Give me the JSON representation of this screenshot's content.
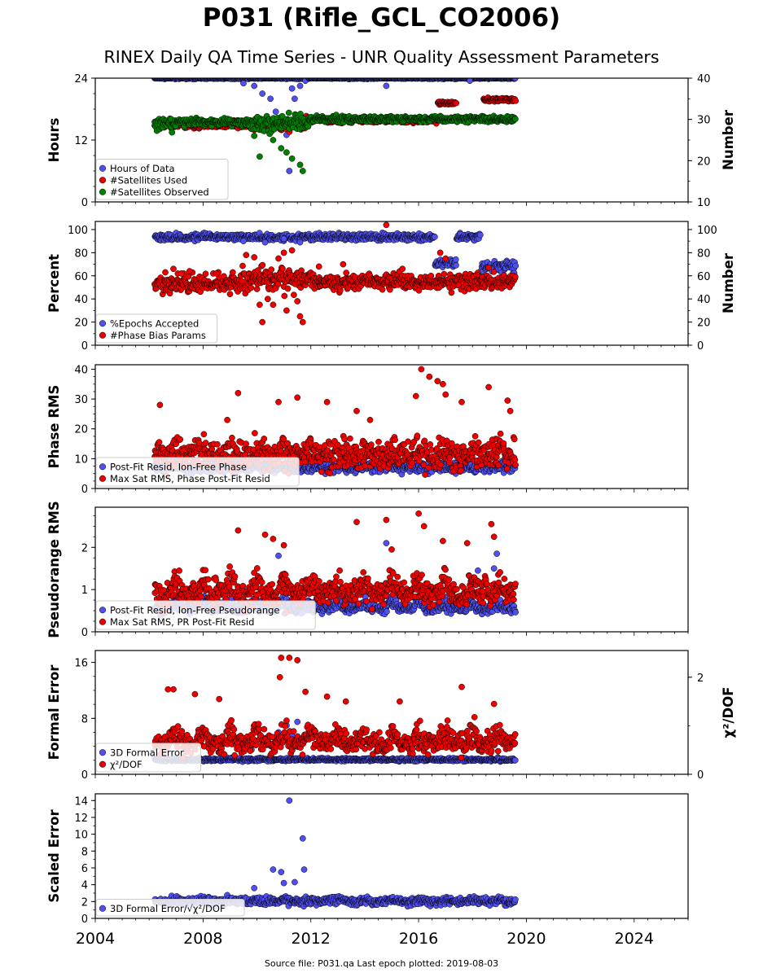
{
  "title": "P031 (Rifle_GCL_CO2006)",
  "subtitle": "RINEX Daily QA Time Series - UNR Quality Assessment Parameters",
  "footer": "Source file: P031.qa Last epoch plotted: 2019-08-03",
  "colors": {
    "blue": "#5050f0",
    "red": "#ee0000",
    "green": "#008000",
    "edge": "#000000"
  },
  "chart_data": [
    {
      "type": "scatter",
      "ylabel": "Hours",
      "y2label": "Number",
      "ylim": [
        0,
        24
      ],
      "yticks": [
        0,
        12,
        24
      ],
      "y2lim": [
        10,
        40
      ],
      "y2ticks": [
        10,
        20,
        30,
        40
      ],
      "legend": "lower-left",
      "series": [
        {
          "name": "Hours of Data",
          "color": "blue",
          "axis": "left",
          "segments": [
            {
              "x": [
                2006.2,
                2009.3
              ],
              "y": 24,
              "jitter": 0.1
            },
            {
              "x": [
                2009.3,
                2011.9
              ],
              "y": 24,
              "jitter": 0.1,
              "outliers": [
                [
                  2009.5,
                  23
                ],
                [
                  2009.9,
                  22.5
                ],
                [
                  2010.2,
                  21
                ],
                [
                  2010.5,
                  20
                ],
                [
                  2010.7,
                  17.5
                ],
                [
                  2010.9,
                  16
                ],
                [
                  2011.0,
                  15
                ],
                [
                  2011.1,
                  13
                ],
                [
                  2011.2,
                  6
                ],
                [
                  2011.3,
                  22
                ],
                [
                  2011.4,
                  20
                ],
                [
                  2011.6,
                  22.5
                ],
                [
                  2011.8,
                  23.5
                ]
              ]
            },
            {
              "x": [
                2011.9,
                2019.6
              ],
              "y": 24,
              "jitter": 0.1,
              "outliers": [
                [
                  2014.8,
                  22.5
                ],
                [
                  2017.9,
                  23.5
                ]
              ]
            }
          ]
        },
        {
          "name": "#Satellites Used",
          "color": "red",
          "axis": "right",
          "segments": [
            {
              "x": [
                2006.2,
                2009.8
              ],
              "y": 28.6,
              "jitter": 0.5
            },
            {
              "x": [
                2009.8,
                2011.9
              ],
              "y": 28.8,
              "jitter": 1.0
            },
            {
              "x": [
                2011.9,
                2016.7
              ],
              "y": 29.8,
              "jitter": 0.4
            },
            {
              "x": [
                2016.7,
                2017.4
              ],
              "y": 34.0,
              "jitter": 0.3
            },
            {
              "x": [
                2017.4,
                2018.4
              ],
              "y": 30.2,
              "jitter": 0.3
            },
            {
              "x": [
                2018.4,
                2019.6
              ],
              "y": 34.8,
              "jitter": 0.4
            }
          ]
        },
        {
          "name": "#Satellites Observed",
          "color": "green",
          "axis": "right",
          "segments": [
            {
              "x": [
                2006.2,
                2007.0
              ],
              "y": 28.7,
              "jitter": 0.9
            },
            {
              "x": [
                2007.0,
                2009.8
              ],
              "y": 29.4,
              "jitter": 0.6
            },
            {
              "x": [
                2009.8,
                2011.9
              ],
              "y": 29.0,
              "jitter": 1.3,
              "outliers": [
                [
                  2009.9,
                  26
                ],
                [
                  2010.1,
                  21
                ],
                [
                  2010.6,
                  25
                ],
                [
                  2010.9,
                  23
                ],
                [
                  2011.1,
                  22
                ],
                [
                  2011.3,
                  20.5
                ],
                [
                  2011.6,
                  19
                ],
                [
                  2011.7,
                  17.5
                ]
              ]
            },
            {
              "x": [
                2011.9,
                2019.6
              ],
              "y": 30.1,
              "jitter": 0.5
            }
          ]
        }
      ]
    },
    {
      "type": "scatter",
      "ylabel": "Percent",
      "y2label": "Number",
      "ylim": [
        0,
        107
      ],
      "yticks": [
        0,
        20,
        40,
        60,
        80,
        100
      ],
      "y2lim": [
        0,
        107
      ],
      "y2ticks": [
        0,
        20,
        40,
        60,
        80,
        100
      ],
      "legend": "lower-left",
      "series": [
        {
          "name": "%Epochs Accepted",
          "color": "blue",
          "axis": "left",
          "segments": [
            {
              "x": [
                2006.2,
                2016.6
              ],
              "y": 93.5,
              "jitter": 2.0,
              "outliers": [
                [
                  2009.5,
                  90
                ],
                [
                  2010.3,
                  89
                ],
                [
                  2011.0,
                  92
                ],
                [
                  2011.6,
                  89
                ]
              ]
            },
            {
              "x": [
                2016.6,
                2017.4
              ],
              "y": 71,
              "jitter": 2.5
            },
            {
              "x": [
                2017.4,
                2018.3
              ],
              "y": 93.5,
              "jitter": 2.0
            },
            {
              "x": [
                2018.3,
                2019.6
              ],
              "y": 68,
              "jitter": 3.5
            }
          ]
        },
        {
          "name": "#Phase Bias Params",
          "color": "red",
          "axis": "right",
          "segments": [
            {
              "x": [
                2006.2,
                2009.4
              ],
              "y": 53,
              "jitter": 5,
              "outliers": [
                [
                  2006.6,
                  63
                ],
                [
                  2006.9,
                  66
                ],
                [
                  2007.2,
                  62
                ],
                [
                  2007.5,
                  64
                ],
                [
                  2008.5,
                  62
                ],
                [
                  2009.1,
                  63
                ]
              ]
            },
            {
              "x": [
                2009.4,
                2012.0
              ],
              "y": 57,
              "jitter": 7,
              "outliers": [
                [
                  2009.6,
                  78
                ],
                [
                  2009.9,
                  76
                ],
                [
                  2010.1,
                  35
                ],
                [
                  2010.2,
                  20
                ],
                [
                  2010.4,
                  40
                ],
                [
                  2010.6,
                  35
                ],
                [
                  2010.8,
                  75
                ],
                [
                  2011.0,
                  80
                ],
                [
                  2011.1,
                  30
                ],
                [
                  2011.3,
                  82
                ],
                [
                  2011.6,
                  25
                ],
                [
                  2011.7,
                  20
                ],
                [
                  2011.5,
                  38
                ]
              ]
            },
            {
              "x": [
                2012.0,
                2019.6
              ],
              "y": 55,
              "jitter": 4.5,
              "outliers": [
                [
                  2014.8,
                  104
                ],
                [
                  2016.8,
                  80
                ],
                [
                  2017.0,
                  75
                ],
                [
                  2012.3,
                  68
                ],
                [
                  2013.2,
                  70
                ],
                [
                  2015.4,
                  66
                ],
                [
                  2018.6,
                  67
                ]
              ]
            }
          ]
        }
      ]
    },
    {
      "type": "scatter",
      "ylabel": "Phase RMS",
      "ylim": [
        0,
        41.5
      ],
      "yticks": [
        0,
        10,
        20,
        30,
        40
      ],
      "legend": "lower-left",
      "series": [
        {
          "name": "Post-Fit Resid, Ion-Free Phase",
          "color": "blue",
          "axis": "left",
          "segments": [
            {
              "x": [
                2006.2,
                2019.6
              ],
              "y": 7,
              "jitter": 1.2,
              "seasonal": 1.0
            }
          ]
        },
        {
          "name": "Max Sat RMS, Phase Post-Fit Resid",
          "color": "red",
          "axis": "left",
          "segments": [
            {
              "x": [
                2006.2,
                2019.6
              ],
              "y": 11,
              "jitter": 3.5,
              "seasonal": 3.5
            }
          ],
          "outliers": [
            [
              2006.4,
              28
            ],
            [
              2008.9,
              23
            ],
            [
              2009.3,
              32
            ],
            [
              2010.8,
              29
            ],
            [
              2011.5,
              30.5
            ],
            [
              2012.6,
              29
            ],
            [
              2013.7,
              26
            ],
            [
              2014.2,
              23
            ],
            [
              2015.9,
              31
            ],
            [
              2016.1,
              40
            ],
            [
              2016.4,
              37.5
            ],
            [
              2016.7,
              36
            ],
            [
              2016.9,
              35
            ],
            [
              2017.0,
              31.5
            ],
            [
              2017.6,
              29
            ],
            [
              2018.6,
              34
            ],
            [
              2019.3,
              29.5
            ],
            [
              2019.4,
              26
            ]
          ]
        }
      ]
    },
    {
      "type": "scatter",
      "ylabel": "Pseudorange RMS",
      "ylim": [
        0,
        2.95
      ],
      "yticks": [
        0,
        1,
        2
      ],
      "legend": "lower-left",
      "series": [
        {
          "name": "Post-Fit Resid, Ion-Free Pseudorange",
          "color": "blue",
          "axis": "left",
          "segments": [
            {
              "x": [
                2006.2,
                2019.6
              ],
              "y": 0.55,
              "jitter": 0.08,
              "seasonal": 0.25
            }
          ],
          "outliers": [
            [
              2010.8,
              1.8
            ],
            [
              2014.8,
              2.1
            ],
            [
              2018.9,
              1.85
            ],
            [
              2018.2,
              1.45
            ],
            [
              2018.8,
              1.5
            ]
          ]
        },
        {
          "name": "Max Sat RMS, PR Post-Fit Resid",
          "color": "red",
          "axis": "left",
          "segments": [
            {
              "x": [
                2006.2,
                2019.6
              ],
              "y": 0.9,
              "jitter": 0.2,
              "seasonal": 0.5
            }
          ],
          "outliers": [
            [
              2009.3,
              2.4
            ],
            [
              2010.3,
              2.3
            ],
            [
              2010.6,
              2.2
            ],
            [
              2011.0,
              2.05
            ],
            [
              2013.7,
              2.6
            ],
            [
              2014.8,
              2.65
            ],
            [
              2015.0,
              1.95
            ],
            [
              2016.0,
              2.8
            ],
            [
              2016.2,
              2.5
            ],
            [
              2016.9,
              2.15
            ],
            [
              2017.8,
              2.1
            ],
            [
              2018.7,
              2.55
            ],
            [
              2018.8,
              2.25
            ]
          ]
        }
      ]
    },
    {
      "type": "scatter",
      "ylabel": "Formal Error",
      "y2label": "χ²/DOF",
      "ylim": [
        0,
        17.7
      ],
      "yticks": [
        0,
        8,
        16
      ],
      "y2lim": [
        0,
        2.55
      ],
      "y2ticks": [
        0,
        2
      ],
      "legend": "lower-left",
      "series": [
        {
          "name": "3D Formal Error",
          "color": "blue",
          "axis": "left",
          "segments": [
            {
              "x": [
                2006.2,
                2019.6
              ],
              "y": 2.1,
              "jitter": 0.15
            }
          ],
          "outliers": [
            [
              2009.8,
              3.5
            ],
            [
              2010.8,
              6
            ],
            [
              2011.1,
              7
            ],
            [
              2011.3,
              5.5
            ],
            [
              2011.5,
              7.5
            ],
            [
              2011.7,
              4.5
            ]
          ]
        },
        {
          "name": "χ²/DOF",
          "color": "red",
          "axis": "right",
          "segments": [
            {
              "x": [
                2006.2,
                2019.6
              ],
              "y": 0.65,
              "jitter": 0.15,
              "seasonal": 0.35
            }
          ],
          "outliers": [
            [
              2006.7,
              1.75
            ],
            [
              2006.9,
              1.75
            ],
            [
              2007.7,
              1.65
            ],
            [
              2008.6,
              1.55
            ],
            [
              2010.9,
              2.4
            ],
            [
              2010.85,
              2.0
            ],
            [
              2011.2,
              2.4
            ],
            [
              2011.5,
              2.35
            ],
            [
              2011.8,
              1.7
            ],
            [
              2012.6,
              1.6
            ],
            [
              2013.3,
              1.5
            ],
            [
              2015.3,
              1.5
            ],
            [
              2017.6,
              1.8
            ],
            [
              2018.8,
              1.45
            ]
          ]
        }
      ]
    },
    {
      "type": "scatter",
      "ylabel": "Scaled Error",
      "ylim": [
        0,
        14.8
      ],
      "yticks": [
        0,
        2,
        4,
        6,
        8,
        10,
        12,
        14
      ],
      "xlim": [
        2004,
        2026
      ],
      "xticks": [
        2004,
        2008,
        2012,
        2016,
        2020,
        2024
      ],
      "legend": "lower-left",
      "series": [
        {
          "name": "3D Formal Error/√χ²/DOF",
          "color": "blue",
          "axis": "left",
          "segments": [
            {
              "x": [
                2006.2,
                2019.6
              ],
              "y": 2.0,
              "jitter": 0.3,
              "seasonal": 0.4
            }
          ],
          "outliers": [
            [
              2009.9,
              3.6
            ],
            [
              2010.6,
              5.8
            ],
            [
              2010.9,
              5.5
            ],
            [
              2011.0,
              4.2
            ],
            [
              2011.2,
              14.0
            ],
            [
              2011.4,
              4.3
            ],
            [
              2011.7,
              9.5
            ],
            [
              2011.75,
              5.8
            ]
          ]
        }
      ]
    }
  ]
}
